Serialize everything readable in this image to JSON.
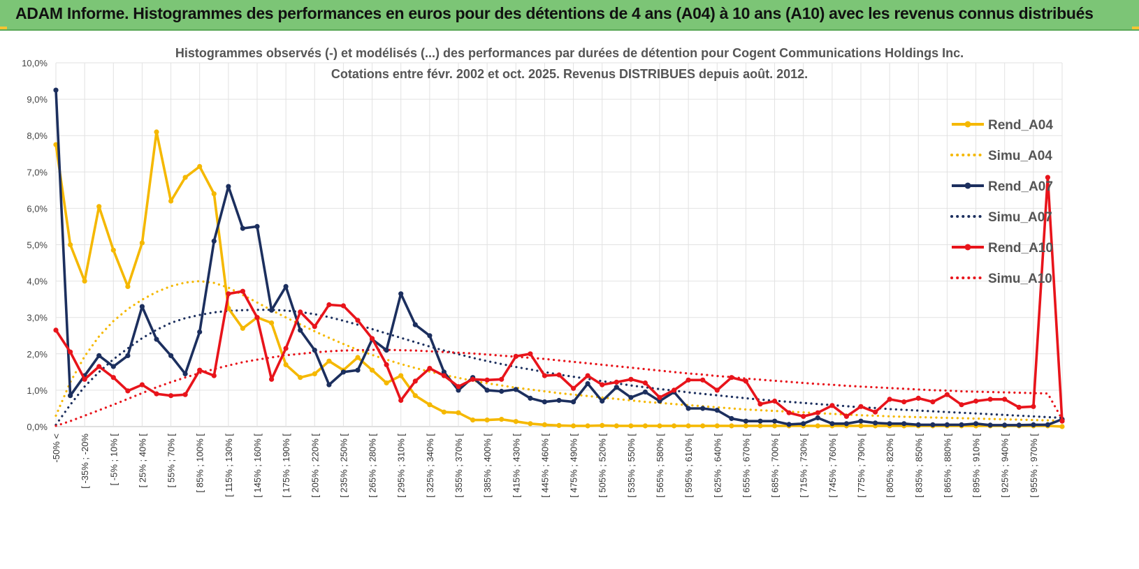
{
  "header": {
    "title": "ADAM Informe. Histogrammes des performances en euros pour des détentions de 4 ans (A04) à 10 ans (A10) avec les revenus connus distribués"
  },
  "chart_data": {
    "type": "line",
    "title": "Histogrammes observés (-) et modélisés (...) des performances par durées de détention pour Cogent Communications Holdings Inc.",
    "subtitle": "Cotations entre févr. 2002 et oct. 2025. Revenus DISTRIBUES depuis août. 2012.",
    "ylim": [
      0,
      10
    ],
    "ytick_labels": [
      "0,0%",
      "1,0%",
      "2,0%",
      "3,0%",
      "4,0%",
      "5,0%",
      "6,0%",
      "7,0%",
      "8,0%",
      "9,0%",
      "10,0%"
    ],
    "xtick_labels": [
      "-50% <",
      "[ -35% ; -20%",
      "[ -5% ; 10% [",
      "[ 25% ; 40% [",
      "[ 55% ; 70% [",
      "[ 85% ; 100% [",
      "[ 115% ; 130% [",
      "[ 145% ; 160% [",
      "[ 175% ; 190% [",
      "[ 205% ; 220% [",
      "[ 235% ; 250% [",
      "[ 265% ; 280% [",
      "[ 295% ; 310% [",
      "[ 325% ; 340% [",
      "[ 355% ; 370% [",
      "[ 385% ; 400% [",
      "[ 415% ; 430% [",
      "[ 445% ; 460% [",
      "[ 475% ; 490% [",
      "[ 505% ; 520% [",
      "[ 535% ; 550% [",
      "[ 565% ; 580% [",
      "[ 595% ; 610% [",
      "[ 625% ; 640% [",
      "[ 655% ; 670% [",
      "[ 685% ; 700% [",
      "[ 715% ; 730% [",
      "[ 745% ; 760% [",
      "[ 775% ; 790% [",
      "[ 805% ; 820% [",
      "[ 835% ; 850% [",
      "[ 865% ; 880% [",
      "[ 895% ; 910% [",
      "[ 925% ; 940% [",
      "[ 955% ; 970% ["
    ],
    "n_points": 71,
    "series": [
      {
        "name": "Rend_A04",
        "style": "solid",
        "color": "#f5b800",
        "values": [
          7.75,
          5.0,
          4.0,
          6.05,
          4.85,
          3.85,
          5.05,
          8.1,
          6.2,
          6.85,
          7.15,
          6.4,
          3.25,
          2.7,
          3.0,
          2.85,
          1.7,
          1.35,
          1.45,
          1.8,
          1.55,
          1.9,
          1.55,
          1.2,
          1.4,
          0.85,
          0.6,
          0.4,
          0.38,
          0.18,
          0.18,
          0.2,
          0.14,
          0.08,
          0.05,
          0.03,
          0.02,
          0.02,
          0.03,
          0.02,
          0.02,
          0.02,
          0.02,
          0.02,
          0.02,
          0.02,
          0.02,
          0.02,
          0.02,
          0.02,
          0.02,
          0.02,
          0.02,
          0.02,
          0.02,
          0.02,
          0.02,
          0.02,
          0.02,
          0.02,
          0.02,
          0.02,
          0.02,
          0.02,
          0.02,
          0.02,
          0.02,
          0.02,
          0.02,
          0.02,
          0.0
        ]
      },
      {
        "name": "Simu_A04",
        "style": "dotted",
        "color": "#f5b800",
        "values": [
          0.3,
          1.22,
          1.93,
          2.48,
          2.9,
          3.23,
          3.49,
          3.7,
          3.86,
          3.96,
          4.0,
          3.95,
          3.82,
          3.62,
          3.41,
          3.2,
          3.0,
          2.81,
          2.62,
          2.44,
          2.27,
          2.11,
          1.97,
          1.84,
          1.72,
          1.61,
          1.51,
          1.42,
          1.34,
          1.26,
          1.19,
          1.13,
          1.07,
          1.02,
          0.97,
          0.92,
          0.88,
          0.84,
          0.8,
          0.76,
          0.72,
          0.68,
          0.65,
          0.62,
          0.59,
          0.56,
          0.53,
          0.5,
          0.47,
          0.45,
          0.43,
          0.41,
          0.39,
          0.37,
          0.35,
          0.33,
          0.31,
          0.3,
          0.28,
          0.27,
          0.26,
          0.25,
          0.24,
          0.23,
          0.22,
          0.21,
          0.2,
          0.19,
          0.18,
          0.17,
          0.16
        ]
      },
      {
        "name": "Rend_A07",
        "style": "solid",
        "color": "#1c2f5e",
        "values": [
          9.25,
          0.85,
          1.4,
          1.95,
          1.65,
          1.95,
          3.3,
          2.4,
          1.95,
          1.45,
          2.6,
          5.1,
          6.6,
          5.45,
          5.5,
          3.2,
          3.85,
          2.65,
          2.1,
          1.15,
          1.5,
          1.55,
          2.4,
          2.1,
          3.65,
          2.8,
          2.5,
          1.5,
          1.0,
          1.35,
          1.0,
          0.97,
          1.02,
          0.78,
          0.68,
          0.72,
          0.68,
          1.18,
          0.7,
          1.08,
          0.8,
          0.95,
          0.7,
          0.95,
          0.5,
          0.5,
          0.45,
          0.22,
          0.15,
          0.15,
          0.15,
          0.06,
          0.08,
          0.24,
          0.08,
          0.08,
          0.15,
          0.1,
          0.08,
          0.08,
          0.05,
          0.05,
          0.05,
          0.05,
          0.08,
          0.04,
          0.04,
          0.04,
          0.05,
          0.05,
          0.2
        ]
      },
      {
        "name": "Simu_A07",
        "style": "dotted",
        "color": "#1c2f5e",
        "values": [
          0.05,
          0.6,
          1.1,
          1.5,
          1.85,
          2.15,
          2.43,
          2.66,
          2.85,
          2.98,
          3.07,
          3.14,
          3.18,
          3.2,
          3.21,
          3.21,
          3.19,
          3.15,
          3.09,
          3.01,
          2.91,
          2.8,
          2.68,
          2.56,
          2.44,
          2.32,
          2.2,
          2.09,
          1.99,
          1.89,
          1.8,
          1.72,
          1.64,
          1.57,
          1.5,
          1.43,
          1.37,
          1.31,
          1.25,
          1.19,
          1.13,
          1.08,
          1.03,
          0.99,
          0.94,
          0.9,
          0.86,
          0.82,
          0.78,
          0.74,
          0.71,
          0.68,
          0.65,
          0.62,
          0.59,
          0.56,
          0.53,
          0.51,
          0.48,
          0.46,
          0.44,
          0.42,
          0.4,
          0.38,
          0.36,
          0.34,
          0.32,
          0.3,
          0.28,
          0.26,
          0.24
        ]
      },
      {
        "name": "Rend_A10",
        "style": "solid",
        "color": "#e8141b",
        "values": [
          2.65,
          2.05,
          1.3,
          1.65,
          1.35,
          0.98,
          1.15,
          0.9,
          0.85,
          0.88,
          1.55,
          1.4,
          3.65,
          3.72,
          3.0,
          1.3,
          2.15,
          3.15,
          2.75,
          3.35,
          3.32,
          2.92,
          2.42,
          1.7,
          0.72,
          1.25,
          1.6,
          1.4,
          1.1,
          1.3,
          1.28,
          1.3,
          1.93,
          2.0,
          1.4,
          1.42,
          1.05,
          1.4,
          1.15,
          1.22,
          1.3,
          1.2,
          0.8,
          1.0,
          1.28,
          1.28,
          1.0,
          1.35,
          1.25,
          0.62,
          0.7,
          0.38,
          0.28,
          0.38,
          0.58,
          0.28,
          0.55,
          0.4,
          0.75,
          0.68,
          0.78,
          0.68,
          0.88,
          0.6,
          0.7,
          0.75,
          0.75,
          0.53,
          0.55,
          6.85,
          0.15
        ]
      },
      {
        "name": "Simu_A10",
        "style": "dotted",
        "color": "#e8141b",
        "values": [
          0.02,
          0.15,
          0.3,
          0.45,
          0.6,
          0.76,
          0.92,
          1.08,
          1.22,
          1.35,
          1.47,
          1.58,
          1.68,
          1.77,
          1.84,
          1.9,
          1.96,
          2.0,
          2.04,
          2.07,
          2.09,
          2.1,
          2.11,
          2.11,
          2.1,
          2.09,
          2.07,
          2.05,
          2.03,
          2.01,
          1.98,
          1.95,
          1.92,
          1.89,
          1.86,
          1.82,
          1.78,
          1.74,
          1.7,
          1.66,
          1.62,
          1.58,
          1.54,
          1.5,
          1.46,
          1.43,
          1.39,
          1.36,
          1.32,
          1.29,
          1.26,
          1.23,
          1.2,
          1.17,
          1.15,
          1.12,
          1.1,
          1.08,
          1.06,
          1.04,
          1.02,
          1.0,
          0.99,
          0.97,
          0.96,
          0.95,
          0.94,
          0.93,
          0.92,
          0.91,
          0.2
        ]
      }
    ]
  }
}
